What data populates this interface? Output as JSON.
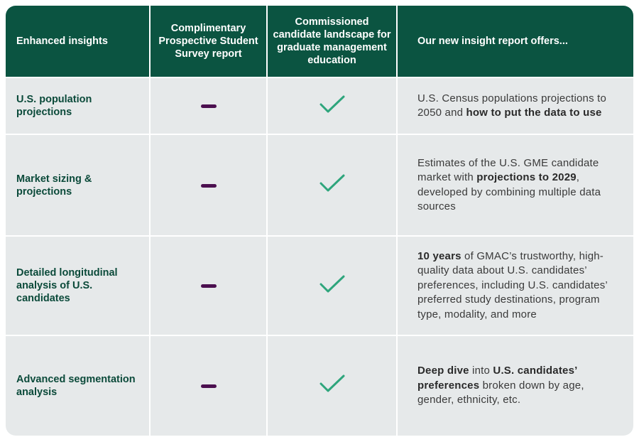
{
  "table": {
    "header": [
      "Enhanced insights",
      "Complimentary Prospective Student Survey report",
      "Commissioned candidate landscape for graduate management education",
      "Our new insight report offers..."
    ],
    "rows": [
      {
        "label": "U.S. population projections",
        "description": [
          {
            "text": "U.S. Census populations projections to 2050 and ",
            "bold": false
          },
          {
            "text": "how to put the data to use",
            "bold": true
          }
        ]
      },
      {
        "label": "Market sizing & projections",
        "description": [
          {
            "text": "Estimates of the U.S. GME candidate market with ",
            "bold": false
          },
          {
            "text": "projections to 2029",
            "bold": true
          },
          {
            "text": ", developed by combining multiple data sources",
            "bold": false
          }
        ]
      },
      {
        "label": "Detailed longitudinal analysis of U.S. candidates",
        "description": [
          {
            "text": "10 years",
            "bold": true
          },
          {
            "text": " of GMAC’s trustworthy, high-quality data about U.S. candidates’ preferences, including U.S. candidates’ preferred study destinations, program type, modality, and more",
            "bold": false
          }
        ]
      },
      {
        "label": "Advanced segmentation analysis",
        "description": [
          {
            "text": "Deep dive",
            "bold": true
          },
          {
            "text": " into ",
            "bold": false
          },
          {
            "text": "U.S. candidates’ preferences",
            "bold": true
          },
          {
            "text": " broken down by age, gender, ethnicity, etc.",
            "bold": false
          }
        ]
      }
    ]
  }
}
